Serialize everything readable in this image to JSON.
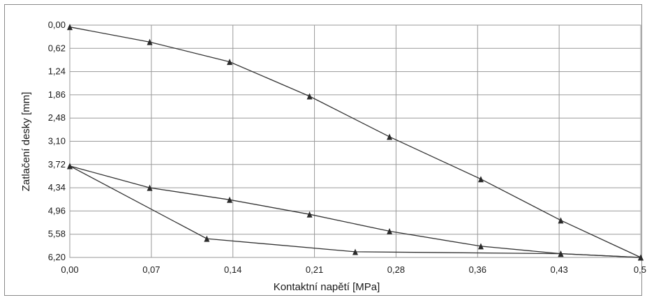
{
  "chart_data": {
    "type": "line",
    "xlabel": "Kontaktní napětí [MPa]",
    "ylabel": "Zatlačení desky [mm]",
    "x_ticks": [
      "0,00",
      "0,07",
      "0,14",
      "0,21",
      "0,28",
      "0,36",
      "0,43",
      "0,5"
    ],
    "y_ticks": [
      "0,00",
      "0,62",
      "1,24",
      "1,86",
      "2,48",
      "3,10",
      "3,72",
      "4,34",
      "4,96",
      "5,58",
      "6,20"
    ],
    "xlim": [
      0,
      0.5
    ],
    "ylim": [
      0,
      6.2
    ],
    "y_inverted": true,
    "grid": true,
    "marker": "triangle",
    "series": [
      {
        "points": [
          {
            "x": 0.0,
            "y": 0.05
          },
          {
            "x": 0.07,
            "y": 0.45
          },
          {
            "x": 0.14,
            "y": 0.98
          },
          {
            "x": 0.21,
            "y": 1.9
          },
          {
            "x": 0.28,
            "y": 2.98
          },
          {
            "x": 0.36,
            "y": 4.11
          },
          {
            "x": 0.43,
            "y": 5.21
          },
          {
            "x": 0.5,
            "y": 6.2
          }
        ]
      },
      {
        "points": [
          {
            "x": 0.5,
            "y": 6.2
          },
          {
            "x": 0.43,
            "y": 6.1
          },
          {
            "x": 0.36,
            "y": 5.9
          },
          {
            "x": 0.28,
            "y": 5.5
          },
          {
            "x": 0.21,
            "y": 5.05
          },
          {
            "x": 0.14,
            "y": 4.66
          },
          {
            "x": 0.07,
            "y": 4.34
          },
          {
            "x": 0.0,
            "y": 3.76
          }
        ]
      },
      {
        "points": [
          {
            "x": 0.0,
            "y": 3.76
          },
          {
            "x": 0.12,
            "y": 5.7
          },
          {
            "x": 0.25,
            "y": 6.05
          },
          {
            "x": 0.43,
            "y": 6.1
          },
          {
            "x": 0.5,
            "y": 6.2
          }
        ]
      }
    ]
  }
}
